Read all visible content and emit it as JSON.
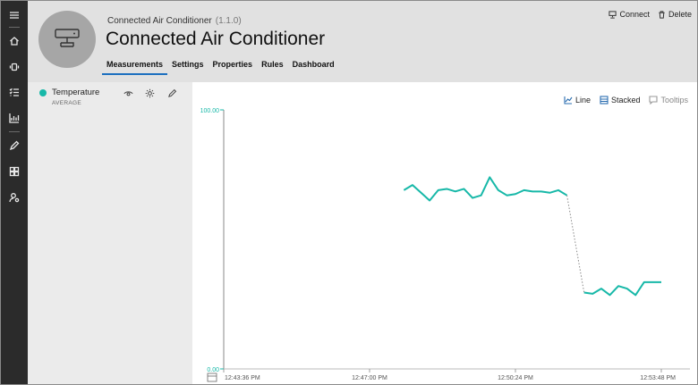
{
  "header": {
    "subtitle": "Connected Air Conditioner",
    "version": "(1.1.0)",
    "title": "Connected Air Conditioner",
    "tabs": [
      {
        "label": "Measurements",
        "active": true
      },
      {
        "label": "Settings",
        "active": false
      },
      {
        "label": "Properties",
        "active": false
      },
      {
        "label": "Rules",
        "active": false
      },
      {
        "label": "Dashboard",
        "active": false
      }
    ],
    "actions": {
      "connect": "Connect",
      "delete": "Delete"
    }
  },
  "rail": {
    "icons": [
      "menu-icon",
      "home-icon",
      "device-icon",
      "list-icon",
      "analytics-icon",
      "edit-icon",
      "dashboard-icon",
      "admin-icon"
    ]
  },
  "measurement": {
    "name": "Temperature",
    "aggregation": "AVERAGE",
    "color": "#17b8a8"
  },
  "chart_tools": {
    "line": "Line",
    "stacked": "Stacked",
    "tooltips": "Tooltips"
  },
  "chart_data": {
    "type": "line",
    "title": "",
    "xlabel": "",
    "ylabel": "",
    "ylim": [
      0,
      100
    ],
    "y_tick_labels": [
      "100.00",
      "0.00"
    ],
    "x_tick_labels": [
      "12:43:36 PM",
      "12:47:00 PM",
      "12:50:24 PM",
      "12:53:48 PM"
    ],
    "grid": false,
    "series": [
      {
        "color": "#17b8a8",
        "segments": [
          {
            "x": [
              "12:47:48 PM",
              "12:48:00 PM",
              "12:48:12 PM",
              "12:48:24 PM",
              "12:48:36 PM",
              "12:48:48 PM",
              "12:49:00 PM",
              "12:49:12 PM",
              "12:49:24 PM",
              "12:49:36 PM",
              "12:49:48 PM",
              "12:50:00 PM",
              "12:50:12 PM",
              "12:50:24 PM",
              "12:50:36 PM",
              "12:50:48 PM",
              "12:51:00 PM",
              "12:51:12 PM",
              "12:51:24 PM",
              "12:51:36 PM"
            ],
            "y": [
              69,
              71,
              68,
              65,
              69,
              69.5,
              68.5,
              69.5,
              66,
              67,
              74,
              69,
              67,
              67.5,
              69,
              68.5,
              68.5,
              68,
              69,
              67
            ]
          },
          {
            "x": [
              "12:52:00 PM",
              "12:52:12 PM",
              "12:52:24 PM",
              "12:52:36 PM",
              "12:52:48 PM",
              "12:53:00 PM",
              "12:53:12 PM",
              "12:53:24 PM",
              "12:53:36 PM",
              "12:53:48 PM"
            ],
            "y": [
              29.5,
              29,
              31,
              28.5,
              32,
              31,
              28.5,
              33.5,
              33.5,
              33.5
            ]
          }
        ],
        "gap_style": "dotted"
      }
    ]
  }
}
